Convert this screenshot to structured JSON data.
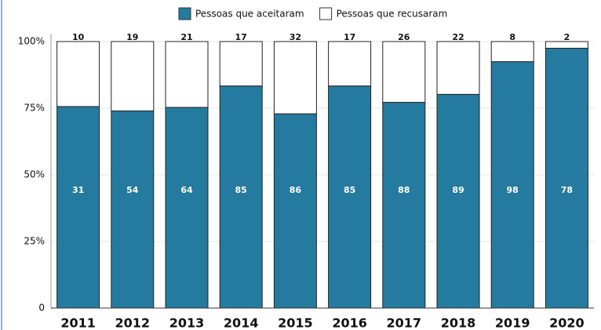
{
  "chart_data": {
    "type": "bar",
    "stacking": "percent",
    "categories": [
      "2011",
      "2012",
      "2013",
      "2014",
      "2015",
      "2016",
      "2017",
      "2018",
      "2019",
      "2020"
    ],
    "series": [
      {
        "name": "Pessoas que aceitaram",
        "color": "#247b9f",
        "values": [
          31,
          54,
          64,
          85,
          86,
          85,
          88,
          89,
          98,
          78
        ]
      },
      {
        "name": "Pessoas que recusaram",
        "color": "#ffffff",
        "values": [
          10,
          19,
          21,
          17,
          32,
          17,
          26,
          22,
          8,
          2
        ]
      }
    ],
    "ylim": [
      0,
      100
    ],
    "yticks": [
      0,
      {
        "value": 25,
        "label": "25%"
      },
      {
        "value": 50,
        "label": "50%"
      },
      {
        "value": 75,
        "label": "75%"
      },
      {
        "value": 100,
        "label": "100%"
      }
    ],
    "grid": true,
    "legend": "top"
  }
}
